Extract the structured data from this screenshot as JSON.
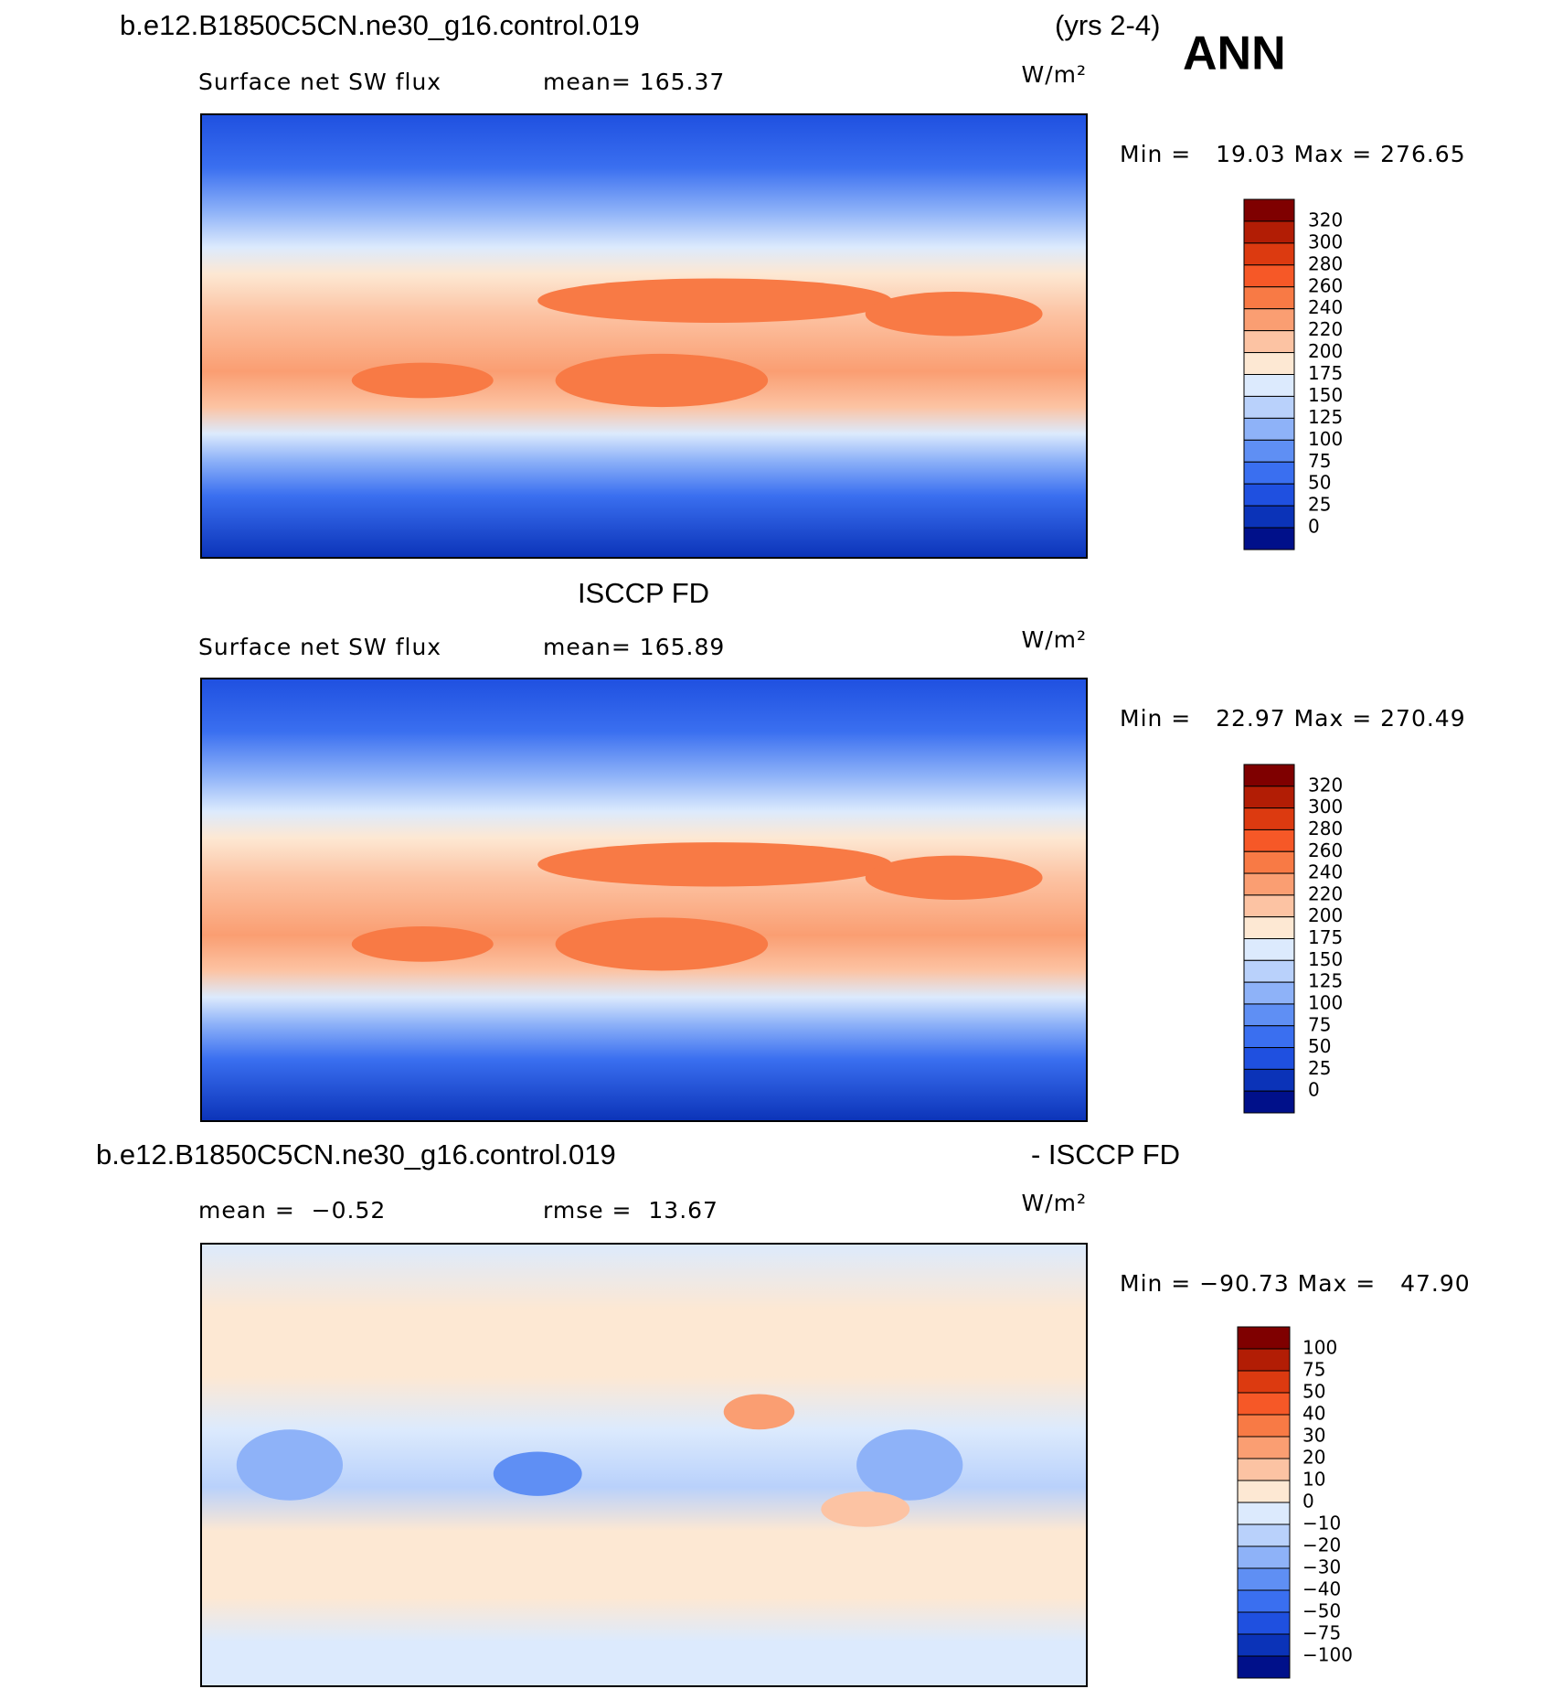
{
  "header": {
    "title": "b.e12.B1850C5CN.ne30_g16.control.019",
    "years": "(yrs 2-4)",
    "season": "ANN"
  },
  "panels": [
    {
      "headings": [],
      "stats": [
        "Surface net SW flux",
        "mean= 165.37"
      ],
      "units": "W/m²",
      "range": "Min =   19.03 Max = 276.65",
      "colorbar": {
        "colors": [
          "#7f0000",
          "#b21d05",
          "#dc3a10",
          "#f65827",
          "#f87a45",
          "#fa9e72",
          "#fcc3a3",
          "#fde8d3",
          "#dceafd",
          "#b9d1fb",
          "#8eb2f8",
          "#5f8ff4",
          "#3a6ff0",
          "#1f50e0",
          "#0b33b8",
          "#00108a"
        ],
        "labels": [
          "320",
          "300",
          "280",
          "260",
          "240",
          "220",
          "200",
          "175",
          "150",
          "125",
          "100",
          "75",
          "50",
          "25",
          "0"
        ]
      }
    },
    {
      "headings": [
        "ISCCP FD"
      ],
      "stats": [
        "Surface net SW flux",
        "mean= 165.89"
      ],
      "units": "W/m²",
      "range": "Min =   22.97 Max = 270.49",
      "colorbar": {
        "colors": [
          "#7f0000",
          "#b21d05",
          "#dc3a10",
          "#f65827",
          "#f87a45",
          "#fa9e72",
          "#fcc3a3",
          "#fde8d3",
          "#dceafd",
          "#b9d1fb",
          "#8eb2f8",
          "#5f8ff4",
          "#3a6ff0",
          "#1f50e0",
          "#0b33b8",
          "#00108a"
        ],
        "labels": [
          "320",
          "300",
          "280",
          "260",
          "240",
          "220",
          "200",
          "175",
          "150",
          "125",
          "100",
          "75",
          "50",
          "25",
          "0"
        ]
      }
    },
    {
      "headings": [
        "b.e12.B1850C5CN.ne30_g16.control.019",
        "- ISCCP FD"
      ],
      "stats": [
        "mean =  −0.52",
        "rmse =  13.67"
      ],
      "units": "W/m²",
      "range": "Min = −90.73 Max =   47.90",
      "colorbar": {
        "colors": [
          "#7f0000",
          "#b21d05",
          "#dc3a10",
          "#f65827",
          "#f87a45",
          "#fa9e72",
          "#fcc3a3",
          "#fde8d3",
          "#dceafd",
          "#b9d1fb",
          "#8eb2f8",
          "#5f8ff4",
          "#3a6ff0",
          "#1f50e0",
          "#0b33b8",
          "#00108a"
        ],
        "labels": [
          "100",
          "75",
          "50",
          "40",
          "30",
          "20",
          "10",
          "0",
          "−10",
          "−20",
          "−30",
          "−40",
          "−50",
          "−75",
          "−100"
        ]
      }
    }
  ]
}
